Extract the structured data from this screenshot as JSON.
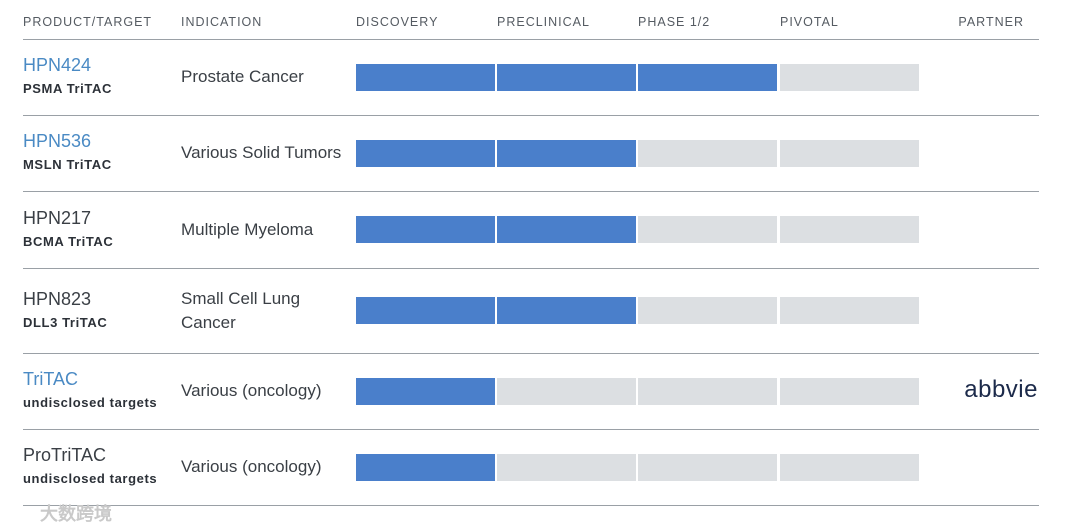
{
  "header": {
    "columns": [
      "PRODUCT/TARGET",
      "INDICATION",
      "DISCOVERY",
      "PRECLINICAL",
      "PHASE 1/2",
      "PIVOTAL",
      "PARTNER"
    ]
  },
  "colors": {
    "filled": "#4a7fcb",
    "empty": "#dcdfe2",
    "highlight": "#4a8ac4",
    "text": "#3a3f45"
  },
  "rows": [
    {
      "name": "HPN424",
      "target": "PSMA TriTAC",
      "indication": "Prostate Cancer",
      "stages_reached": 3,
      "highlight": true
    },
    {
      "name": "HPN536",
      "target": "MSLN TriTAC",
      "indication": "Various Solid Tumors",
      "stages_reached": 2,
      "highlight": true
    },
    {
      "name": "HPN217",
      "target": "BCMA TriTAC",
      "indication": "Multiple Myeloma",
      "stages_reached": 2,
      "highlight": false
    },
    {
      "name": "HPN823",
      "target": "DLL3 TriTAC",
      "indication": "Small Cell Lung Cancer",
      "stages_reached": 2,
      "highlight": false
    },
    {
      "name": "TriTAC",
      "target": "undisclosed targets",
      "indication": "Various (oncology)",
      "stages_reached": 1,
      "highlight": true,
      "partner": "abbvie"
    },
    {
      "name": "ProTriTAC",
      "target": "undisclosed targets",
      "indication": "Various (oncology)",
      "stages_reached": 1,
      "highlight": false
    }
  ],
  "watermark": "大数跨境"
}
